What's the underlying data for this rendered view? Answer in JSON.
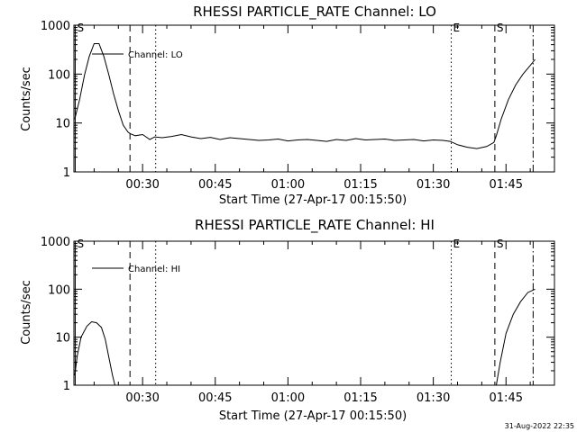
{
  "chart_data": [
    {
      "type": "line",
      "title": "RHESSI PARTICLE_RATE Channel: LO",
      "xlabel": "Start Time (27-Apr-17 00:15:50)",
      "ylabel": "Counts/sec",
      "yscale": "log",
      "ylim": [
        1,
        1000
      ],
      "xlim_minutes": [
        15.83,
        115.0
      ],
      "xticks": [
        "00:30",
        "00:45",
        "01:00",
        "01:15",
        "01:30",
        "01:45"
      ],
      "yticks": [
        "1",
        "10",
        "100",
        "1000"
      ],
      "legend": "Channel: LO",
      "markers": [
        {
          "label": "S",
          "x": 16.1,
          "style": "solid"
        },
        {
          "label": "",
          "x": 27.4,
          "style": "dashed"
        },
        {
          "label": "",
          "x": 32.7,
          "style": "dotted"
        },
        {
          "label": "E",
          "x": 93.7,
          "style": "dotted"
        },
        {
          "label": "S",
          "x": 102.7,
          "style": "dashed"
        },
        {
          "label": "",
          "x": 110.6,
          "style": "dashdot"
        }
      ],
      "x": [
        16.0,
        17.0,
        18.0,
        19.0,
        20.0,
        21.0,
        22.0,
        23.0,
        24.0,
        25.0,
        26.0,
        27.0,
        27.5,
        28.5,
        30.0,
        31.5,
        32.5,
        34.0,
        36.0,
        38.0,
        40.0,
        42.0,
        44.0,
        46.0,
        48.0,
        50.0,
        52.0,
        54.0,
        56.0,
        58.0,
        60.0,
        62.0,
        64.0,
        66.0,
        68.0,
        70.0,
        72.0,
        74.0,
        76.0,
        78.0,
        80.0,
        82.0,
        84.0,
        86.0,
        88.0,
        90.0,
        92.0,
        93.5,
        95.0,
        97.0,
        99.0,
        101.0,
        102.5,
        103.0,
        104.0,
        105.5,
        107.0,
        108.5,
        110.0,
        111.0
      ],
      "values": [
        12,
        30,
        95,
        230,
        420,
        420,
        230,
        100,
        40,
        18,
        9,
        6.5,
        6,
        5.5,
        5.8,
        4.6,
        5.2,
        5,
        5.3,
        5.8,
        5.2,
        4.8,
        5.1,
        4.6,
        5,
        4.8,
        4.6,
        4.4,
        4.5,
        4.7,
        4.3,
        4.5,
        4.6,
        4.4,
        4.2,
        4.6,
        4.4,
        4.8,
        4.5,
        4.6,
        4.7,
        4.4,
        4.5,
        4.6,
        4.3,
        4.5,
        4.4,
        4.2,
        3.6,
        3.2,
        3,
        3.3,
        4,
        5.5,
        12,
        30,
        60,
        100,
        150,
        200
      ]
    },
    {
      "type": "line",
      "title": "RHESSI PARTICLE_RATE Channel: HI",
      "xlabel": "Start Time (27-Apr-17 00:15:50)",
      "ylabel": "Counts/sec",
      "yscale": "log",
      "ylim": [
        1,
        1000
      ],
      "xlim_minutes": [
        15.83,
        115.0
      ],
      "xticks": [
        "00:30",
        "00:45",
        "01:00",
        "01:15",
        "01:30",
        "01:45"
      ],
      "yticks": [
        "1",
        "10",
        "100",
        "1000"
      ],
      "legend": "Channel: HI",
      "markers": [
        {
          "label": "S",
          "x": 16.1,
          "style": "solid"
        },
        {
          "label": "",
          "x": 27.4,
          "style": "dashed"
        },
        {
          "label": "",
          "x": 32.7,
          "style": "dotted"
        },
        {
          "label": "E",
          "x": 93.7,
          "style": "dotted"
        },
        {
          "label": "S",
          "x": 102.7,
          "style": "dashed"
        },
        {
          "label": "",
          "x": 110.6,
          "style": "dashdot"
        }
      ],
      "x": [
        16.0,
        16.5,
        17.3,
        18.5,
        19.5,
        20.5,
        21.5,
        22.3,
        23.0,
        23.8,
        24.3
      ],
      "values": [
        1.6,
        4,
        10,
        17,
        21,
        20,
        16,
        9,
        4,
        1.6,
        1.0
      ],
      "x2": [
        103.0,
        103.8,
        105.0,
        106.5,
        108.0,
        109.5,
        111.0
      ],
      "values2": [
        1.0,
        3,
        12,
        30,
        55,
        85,
        100
      ]
    }
  ],
  "footer": {
    "timestamp": "31-Aug-2022 22:35"
  }
}
